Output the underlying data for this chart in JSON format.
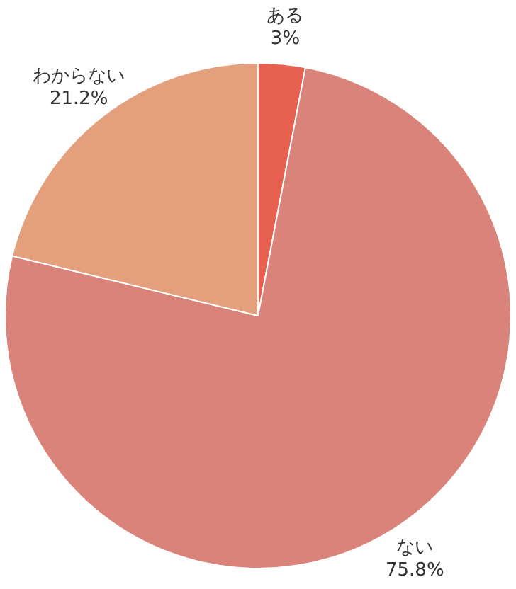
{
  "chart_data": {
    "type": "pie",
    "categories": [
      "ある",
      "ない",
      "わからない"
    ],
    "values": [
      3,
      75.8,
      21.2
    ],
    "colors": [
      "#e8604f",
      "#d9837a",
      "#e4a07c"
    ],
    "value_labels": [
      "3%",
      "75.8%",
      "21.2%"
    ],
    "legend": false
  }
}
